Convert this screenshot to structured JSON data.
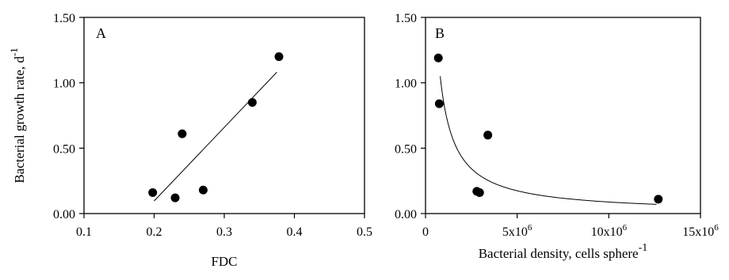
{
  "chart_data": [
    {
      "type": "scatter",
      "panel_label": "A",
      "xlabel": "FDC",
      "ylabel": "Bacterial growth rate, d",
      "ylabel_sup": "-1",
      "xlim": [
        0.1,
        0.5
      ],
      "ylim": [
        0,
        1.5
      ],
      "xticks": [
        "0.1",
        "0.2",
        "0.3",
        "0.4",
        "0.5"
      ],
      "yticks": [
        "0.00",
        "0.50",
        "1.00",
        "1.50"
      ],
      "xtick_values": [
        0.1,
        0.2,
        0.3,
        0.4,
        0.5
      ],
      "ytick_values": [
        0,
        0.5,
        1.0,
        1.5
      ],
      "grid": false,
      "points": [
        {
          "x": 0.198,
          "y": 0.16
        },
        {
          "x": 0.23,
          "y": 0.12
        },
        {
          "x": 0.24,
          "y": 0.61
        },
        {
          "x": 0.27,
          "y": 0.18
        },
        {
          "x": 0.34,
          "y": 0.85
        },
        {
          "x": 0.378,
          "y": 1.2
        }
      ],
      "fit": {
        "kind": "linear",
        "slope": 5.63,
        "intercept": -1.03,
        "x_range": [
          0.2,
          0.375
        ]
      }
    },
    {
      "type": "scatter",
      "panel_label": "B",
      "xlabel": "Bacterial density, cells sphere",
      "xlabel_sup": "-1",
      "xlim": [
        0,
        15000000
      ],
      "ylim": [
        0,
        1.5
      ],
      "xticks": [
        {
          "base": "0",
          "sup": ""
        },
        {
          "base": "5x10",
          "sup": "6"
        },
        {
          "base": "10x10",
          "sup": "6"
        },
        {
          "base": "15x10",
          "sup": "6"
        }
      ],
      "yticks": [
        "0.00",
        "0.50",
        "1.00",
        "1.50"
      ],
      "xtick_values": [
        0,
        5000000,
        10000000,
        15000000
      ],
      "ytick_values": [
        0,
        0.5,
        1.0,
        1.5
      ],
      "grid": false,
      "points": [
        {
          "x": 700000,
          "y": 1.19
        },
        {
          "x": 750000,
          "y": 0.84
        },
        {
          "x": 2800000,
          "y": 0.17
        },
        {
          "x": 2950000,
          "y": 0.16
        },
        {
          "x": 3400000,
          "y": 0.6
        },
        {
          "x": 12700000,
          "y": 0.11
        }
      ],
      "fit": {
        "kind": "power",
        "a": 1.05,
        "x0": 800000,
        "exponent": -0.98,
        "x_range": [
          800000,
          12600000
        ]
      }
    }
  ]
}
